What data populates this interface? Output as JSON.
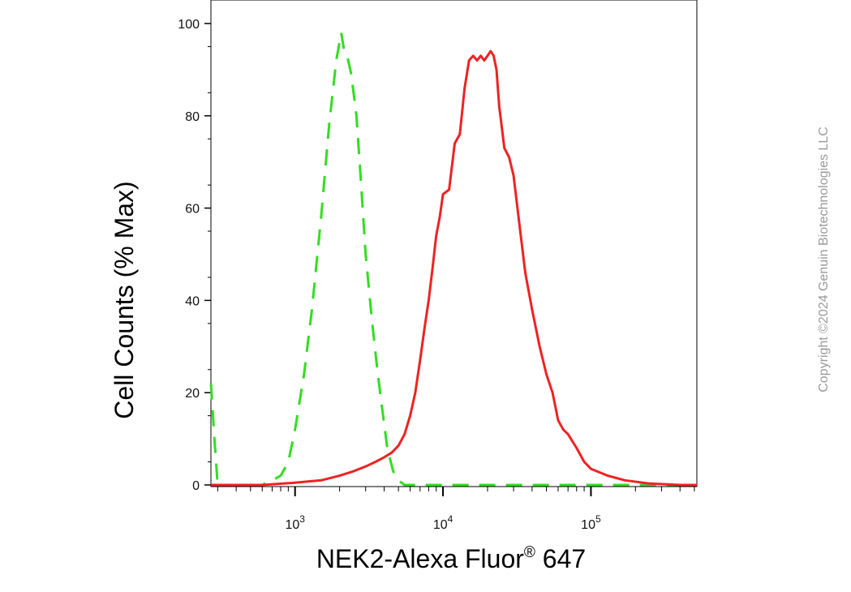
{
  "chart_data": {
    "type": "line",
    "title": "",
    "xlabel": "NEK2-Alexa Fluor",
    "xlabel_sup": "®",
    "xlabel_suffix": " 647",
    "ylabel": "Cell Counts (% Max)",
    "x_scale": "log",
    "xlim": [
      270,
      520000
    ],
    "ylim": [
      0,
      100
    ],
    "x_tick_labels": [
      {
        "base": "10",
        "exp": "3",
        "value": 1000
      },
      {
        "base": "10",
        "exp": "4",
        "value": 10000
      },
      {
        "base": "10",
        "exp": "5",
        "value": 100000
      }
    ],
    "y_ticks": [
      0,
      20,
      40,
      60,
      80,
      100
    ],
    "grid": false,
    "series": [
      {
        "style": "dashed",
        "color": "#33dd22",
        "x": [
          270,
          285,
          300,
          350,
          500,
          600,
          700,
          800,
          900,
          1000,
          1150,
          1300,
          1500,
          1700,
          1900,
          2050,
          2150,
          2250,
          2400,
          2600,
          2800,
          3000,
          3300,
          3600,
          3900,
          4200,
          4600,
          5000,
          5500,
          6000,
          8000,
          12000,
          20000,
          50000,
          100000,
          200000,
          500000
        ],
        "y": [
          22,
          10,
          0,
          0,
          0,
          0,
          1,
          2,
          5,
          12,
          24,
          38,
          58,
          78,
          92,
          98,
          94,
          93,
          89,
          80,
          65,
          50,
          36,
          25,
          16,
          8,
          3,
          1,
          0,
          0,
          0,
          0,
          0,
          0,
          0,
          0,
          0
        ]
      },
      {
        "style": "solid",
        "color": "#ee2222",
        "x": [
          270,
          600,
          1000,
          1500,
          2000,
          2500,
          3000,
          3500,
          4000,
          4500,
          5000,
          5500,
          6000,
          6500,
          7000,
          7500,
          8000,
          8500,
          9000,
          9500,
          10000,
          11000,
          12000,
          13000,
          14000,
          15000,
          16000,
          17000,
          18000,
          19000,
          20000,
          21000,
          22000,
          23000,
          24000,
          26000,
          28000,
          30000,
          33000,
          36000,
          40000,
          45000,
          50000,
          55000,
          60000,
          65000,
          70000,
          80000,
          90000,
          100000,
          130000,
          170000,
          250000,
          400000,
          520000
        ],
        "y": [
          0,
          0,
          0.5,
          1,
          2,
          3,
          4,
          5,
          6,
          7,
          8.5,
          11,
          15,
          20,
          27,
          34,
          40,
          47,
          54,
          58,
          63,
          64,
          74,
          76,
          86,
          92,
          93,
          92,
          93,
          92,
          93,
          94,
          93,
          90,
          82,
          73,
          71,
          67,
          56,
          46,
          38,
          30,
          24,
          20,
          14,
          12,
          11,
          8,
          5,
          3.5,
          2,
          1,
          0.3,
          0,
          0
        ]
      }
    ]
  },
  "watermark": "Copyright ©2024 Genuin Biotechnologies LLC"
}
